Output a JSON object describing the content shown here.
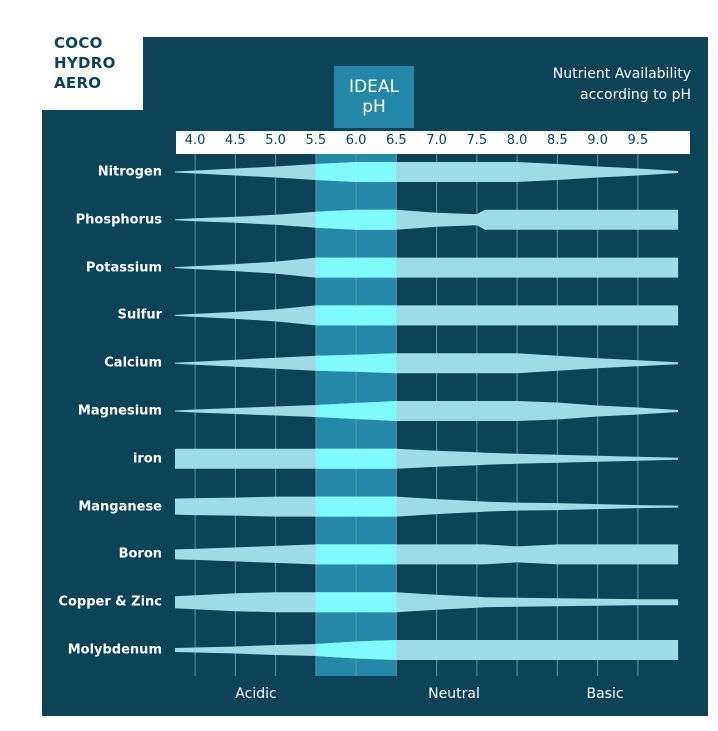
{
  "tag": {
    "lines": [
      "COCO",
      "HYDRO",
      "AERO"
    ]
  },
  "ideal": {
    "line1": "IDEAL",
    "line2": "pH"
  },
  "title": {
    "line1": "Nutrient Availability",
    "line2": "according to pH"
  },
  "zones": {
    "acidic": "Acidic",
    "neutral": "Neutral",
    "basic": "Basic"
  },
  "colors": {
    "background": "#0c4356",
    "band": "#9fdbe5",
    "ideal_zone": "#2488a8",
    "ideal_band": "#7ffaff"
  },
  "chart_data": {
    "type": "band",
    "x_ticks": [
      "4.0",
      "4.5",
      "5.0",
      "5.5",
      "6.0",
      "6.5",
      "7.0",
      "7.5",
      "8.0",
      "8.5",
      "9.0",
      "9.5"
    ],
    "xlim": [
      3.75,
      10.0
    ],
    "ideal_range": [
      5.5,
      6.5
    ],
    "x": [
      3.75,
      4.0,
      4.5,
      5.0,
      5.5,
      6.0,
      6.5,
      7.0,
      7.5,
      7.6,
      8.0,
      8.5,
      9.0,
      9.5,
      10.0
    ],
    "series": [
      {
        "name": "Nitrogen",
        "values": [
          0.05,
          0.15,
          0.35,
          0.55,
          0.8,
          1.0,
          1.0,
          1.0,
          1.0,
          1.0,
          1.0,
          0.8,
          0.55,
          0.35,
          0.1
        ]
      },
      {
        "name": "Phosphorus",
        "values": [
          0.05,
          0.15,
          0.3,
          0.5,
          0.8,
          1.0,
          1.0,
          0.7,
          0.55,
          1.0,
          1.0,
          1.0,
          1.0,
          1.0,
          1.0
        ]
      },
      {
        "name": "Potassium",
        "values": [
          0.05,
          0.15,
          0.35,
          0.6,
          1.0,
          1.0,
          1.0,
          1.0,
          1.0,
          1.0,
          1.0,
          1.0,
          1.0,
          1.0,
          1.0
        ]
      },
      {
        "name": "Sulfur",
        "values": [
          0.05,
          0.15,
          0.35,
          0.6,
          1.0,
          1.0,
          1.0,
          1.0,
          1.0,
          1.0,
          1.0,
          1.0,
          1.0,
          1.0,
          1.0
        ]
      },
      {
        "name": "Calcium",
        "values": [
          0.05,
          0.15,
          0.35,
          0.55,
          0.75,
          0.85,
          1.0,
          1.0,
          1.0,
          1.0,
          1.0,
          0.75,
          0.5,
          0.3,
          0.1
        ]
      },
      {
        "name": "Magnesium",
        "values": [
          0.05,
          0.15,
          0.3,
          0.45,
          0.6,
          0.8,
          1.0,
          1.0,
          1.0,
          1.0,
          1.0,
          0.85,
          0.55,
          0.35,
          0.1
        ]
      },
      {
        "name": "iron",
        "values": [
          1.0,
          1.0,
          1.0,
          1.0,
          1.0,
          1.0,
          1.0,
          0.8,
          0.65,
          0.6,
          0.5,
          0.4,
          0.3,
          0.2,
          0.1
        ]
      },
      {
        "name": "Manganese",
        "values": [
          0.8,
          0.85,
          0.9,
          1.0,
          1.0,
          1.0,
          1.0,
          0.75,
          0.55,
          0.5,
          0.4,
          0.35,
          0.25,
          0.15,
          0.1
        ]
      },
      {
        "name": "Boron",
        "values": [
          0.5,
          0.55,
          0.7,
          0.85,
          1.0,
          1.0,
          1.0,
          1.0,
          1.0,
          1.0,
          0.8,
          1.0,
          1.0,
          1.0,
          1.0
        ]
      },
      {
        "name": "Copper & Zinc",
        "values": [
          0.6,
          0.7,
          0.9,
          1.0,
          1.0,
          1.0,
          1.0,
          0.75,
          0.55,
          0.5,
          0.45,
          0.4,
          0.35,
          0.3,
          0.3
        ]
      },
      {
        "name": "Molybdenum",
        "values": [
          0.2,
          0.25,
          0.35,
          0.5,
          0.6,
          0.85,
          1.0,
          1.0,
          1.0,
          1.0,
          1.0,
          1.0,
          1.0,
          1.0,
          1.0
        ]
      }
    ]
  }
}
